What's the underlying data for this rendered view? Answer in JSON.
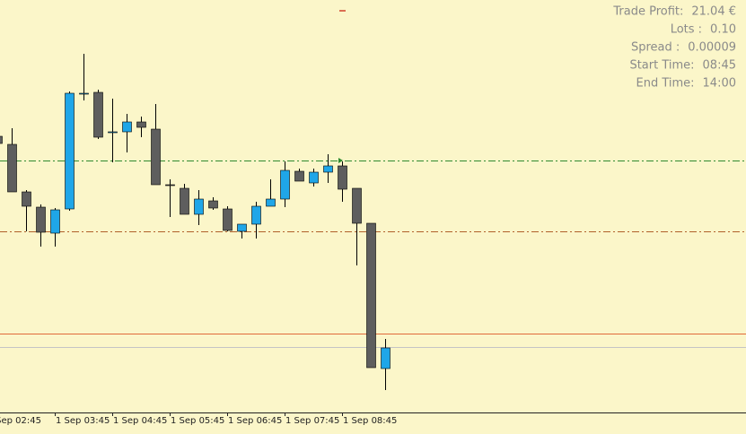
{
  "chart_data": {
    "type": "candlestick",
    "categories": [
      "Sep 02:45",
      null,
      null,
      null,
      "1 Sep 03:45",
      null,
      null,
      null,
      "1 Sep 04:45",
      null,
      null,
      null,
      "1 Sep 05:45",
      null,
      null,
      null,
      "1 Sep 06:45",
      null,
      null,
      null,
      "1 Sep 07:45",
      null,
      null,
      null,
      "1 Sep 08:45",
      null,
      null,
      null
    ],
    "open": [
      308,
      299,
      246,
      229,
      200,
      227,
      356,
      357,
      313,
      313,
      324,
      316,
      254,
      250,
      221,
      236,
      227,
      202,
      210,
      230,
      238,
      269,
      256,
      268,
      275,
      250,
      211,
      49
    ],
    "high": [
      315,
      317,
      248,
      232,
      228,
      358,
      400,
      360,
      350,
      333,
      330,
      344,
      260,
      255,
      248,
      240,
      230,
      210,
      235,
      260,
      280,
      272,
      272,
      288,
      280,
      250,
      211,
      82
    ],
    "low": [
      298,
      246,
      202,
      185,
      185,
      225,
      348,
      305,
      279,
      290,
      307,
      254,
      218,
      221,
      209,
      226,
      202,
      194,
      194,
      230,
      229,
      258,
      252,
      256,
      235,
      164,
      50,
      25
    ],
    "close": [
      300,
      246,
      230,
      201,
      226,
      356,
      356,
      307,
      313,
      324,
      318,
      254,
      253,
      221,
      238,
      228,
      203,
      210,
      230,
      238,
      270,
      258,
      268,
      275,
      249,
      211,
      50,
      72
    ],
    "bull_color": "#1fa6e8",
    "bear_color": "#5e5e5e",
    "ylim": [
      0,
      460
    ],
    "levels": [
      {
        "value": 281,
        "color": "#2f8a2f",
        "style": "dashdot"
      },
      {
        "value": 202,
        "color": "#b0602a",
        "style": "dashdot"
      },
      {
        "value": 88,
        "color": "#e06a3a",
        "style": "solid"
      },
      {
        "value": 73,
        "color": "#c4c4c4",
        "style": "solid"
      }
    ]
  },
  "info": [
    {
      "label": "Trade Profit:",
      "value": "21.04 €"
    },
    {
      "label": "Lots :",
      "value": "0.10"
    },
    {
      "label": "Spread :",
      "value": "0.00009"
    },
    {
      "label": "Start Time:",
      "value": "08:45"
    },
    {
      "label": "End Time:",
      "value": "14:00"
    }
  ]
}
